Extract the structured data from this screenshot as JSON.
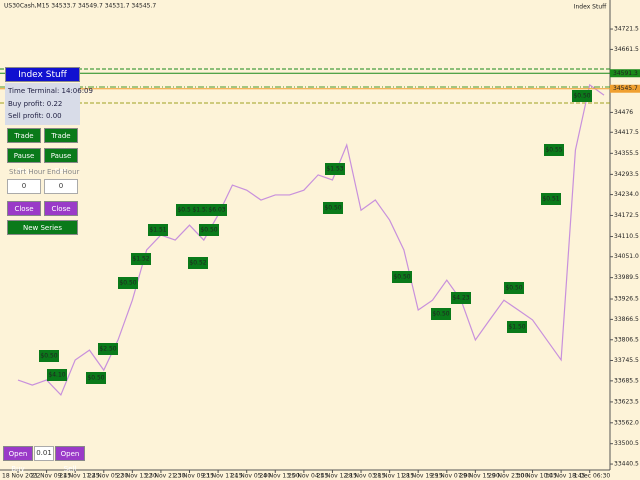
{
  "header": {
    "symbol": "US30Cash,M15  34533.7 34549.7 34531.7 34545.7",
    "indicator": "Index Stuff"
  },
  "chart_data": {
    "type": "line",
    "categories": [
      "18 Nov 2022",
      null,
      "21 Nov 09:45",
      null,
      "21 Nov 17:45",
      null,
      "22 Nov 05:30",
      null,
      "22 Nov 13:30",
      null,
      "22 Nov 21:30",
      null,
      "23 Nov 09:15",
      null,
      "23 Nov 17:15",
      null,
      "24 Nov 05:00",
      null,
      "24 Nov 13:00",
      null,
      "25 Nov 04:45",
      null,
      "25 Nov 12:15",
      null,
      "28 Nov 03:15",
      null,
      "28 Nov 11:15",
      null,
      "28 Nov 19:15",
      null,
      "29 Nov 07:00",
      null,
      "29 Nov 15:00",
      null,
      "29 Nov 23:00",
      null,
      "30 Nov 10:45",
      null,
      "30 Nov 18:45",
      null,
      "1 Dec 06:30",
      null
    ],
    "values": [
      33688,
      33673,
      33688,
      33644,
      33747,
      33776,
      33717,
      33806,
      33923,
      34071,
      34115,
      34100,
      34144,
      34100,
      34174,
      34262,
      34247,
      34218,
      34233,
      34233,
      34247,
      34292,
      34277,
      34380,
      34188,
      34218,
      34159,
      34071,
      33894,
      33923,
      33982,
      33923,
      33806,
      33865,
      33923,
      33894,
      33865,
      33806,
      33747,
      34365,
      34557,
      34527
    ],
    "color": "#c890dc",
    "ylim": [
      33423,
      34807
    ],
    "yticks": [
      34721.5,
      34661.5,
      34476,
      34417.5,
      34355.5,
      34293.5,
      {
        "value": 34234,
        "label": "34234.0"
      },
      34172.5,
      34110.5,
      {
        "value": 34051,
        "label": "34051.0"
      },
      33989.5,
      33926.5,
      33866.5,
      33806.5,
      33745.5,
      33685.5,
      33623.5,
      {
        "value": 33562,
        "label": "33562.0"
      },
      33500.5,
      33440.5
    ],
    "levels": [
      {
        "value": 34591.3,
        "label": "34591.3",
        "color": "#1a8a1a"
      },
      {
        "value": 34545.7,
        "label": "34545.7",
        "color": "#f0a030"
      }
    ],
    "annotations": [
      "$0.50",
      "$4.10",
      "$0.50",
      "$2.50",
      "$0.50",
      "$1.52",
      "$1.51",
      "$0.51",
      "$1.53",
      "$6.03",
      "$0.50",
      "$0.52",
      "$1.53",
      "$0.50",
      "$0.50",
      "$4.23",
      "$0.50",
      "$0.50",
      "$1.50",
      "$0.51",
      "$0.55",
      "$0.50"
    ]
  },
  "panel": {
    "title": "Index Stuff",
    "time": "Time Terminal: 14:06:09",
    "buy_profit": "Buy profit: 0.22",
    "sell_profit": "Sell profit: 0.00",
    "buttons": [
      "Trade Buy",
      "Trade Sell",
      "Pause Buy",
      "Pause Sell"
    ],
    "start_label": "Start Hour",
    "end_label": "End Hour",
    "start_value": "0",
    "end_value": "0",
    "close_buy": "Close Buy",
    "close_sell": "Close Sell",
    "new_series": "New Series"
  },
  "footer": {
    "open_buy": "Open Buy",
    "lot": "0.01",
    "open_sell": "Open Sell"
  }
}
